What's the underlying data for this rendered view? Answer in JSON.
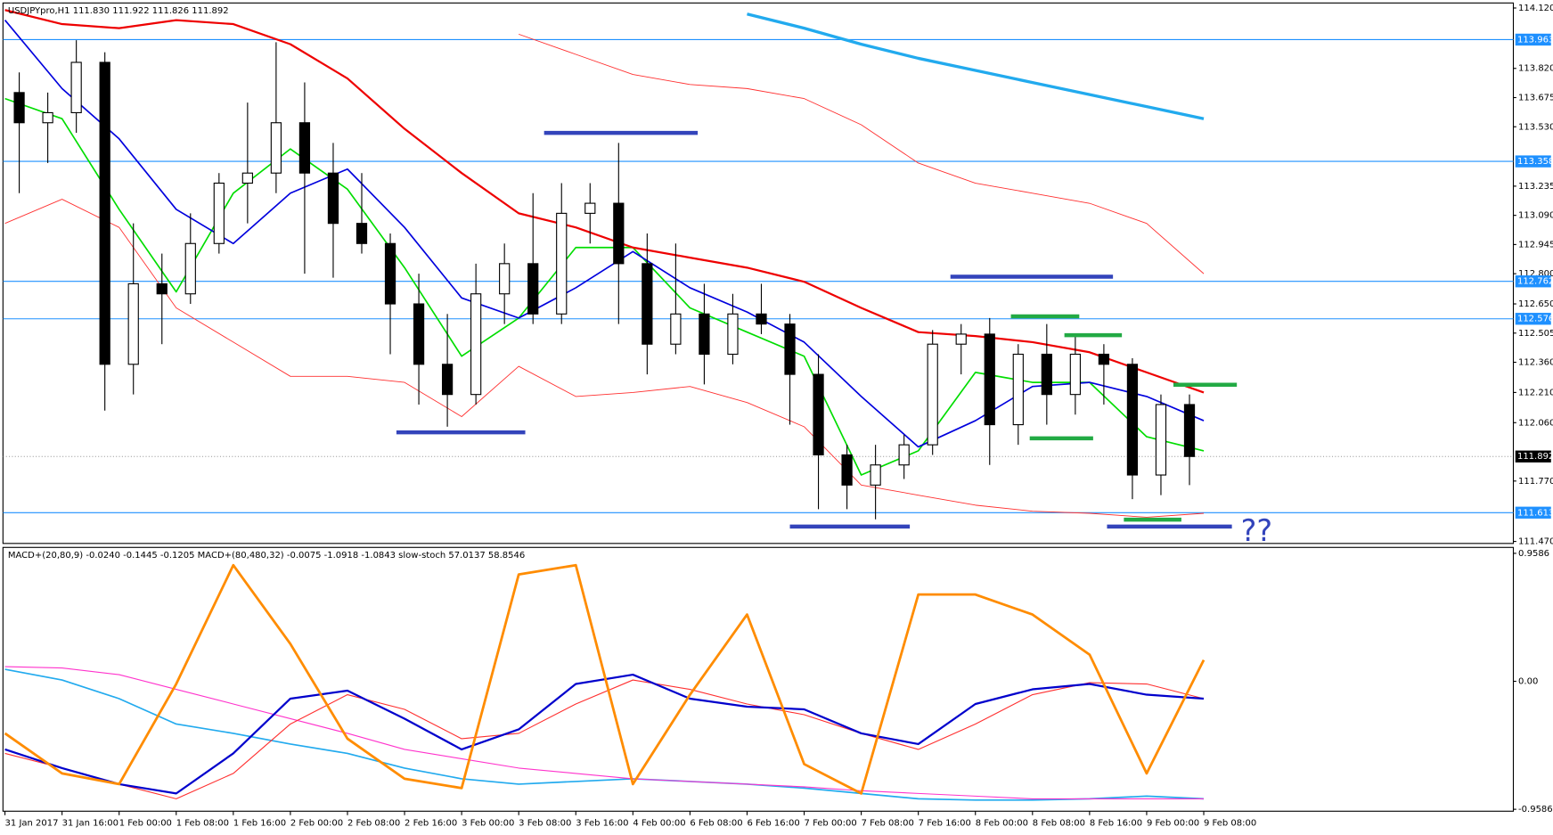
{
  "chart_data": [
    {
      "type": "candlestick",
      "title": "USDJPYpro,H1  111.830 111.922 111.826 111.892",
      "open": [
        113.7,
        113.55,
        113.6,
        113.85,
        112.35,
        112.75,
        112.7,
        112.95,
        113.25,
        113.3,
        113.55,
        113.3,
        113.05,
        112.95,
        112.65,
        112.35,
        112.2,
        112.7,
        112.85,
        112.6,
        113.1,
        113.15,
        112.85,
        112.45,
        112.6,
        112.4,
        112.6,
        112.55,
        112.3,
        111.9,
        111.75,
        111.85,
        111.95,
        112.45,
        112.5,
        112.05,
        112.4,
        112.2,
        112.4,
        112.35,
        111.8,
        112.15
      ],
      "high": [
        113.8,
        113.7,
        113.96,
        113.9,
        113.05,
        112.9,
        113.1,
        113.3,
        113.65,
        113.95,
        113.75,
        113.45,
        113.3,
        113.0,
        112.8,
        112.6,
        112.85,
        112.95,
        113.2,
        113.25,
        113.25,
        113.45,
        113.0,
        112.95,
        112.75,
        112.7,
        112.75,
        112.6,
        112.4,
        111.95,
        111.95,
        112.0,
        112.52,
        112.55,
        112.58,
        112.45,
        112.55,
        112.5,
        112.45,
        112.38,
        112.2,
        112.2
      ],
      "low": [
        113.2,
        113.35,
        113.5,
        112.12,
        112.2,
        112.45,
        112.65,
        112.9,
        113.05,
        113.2,
        112.8,
        112.78,
        112.9,
        112.4,
        112.15,
        112.04,
        112.15,
        112.55,
        112.55,
        112.55,
        112.95,
        112.55,
        112.3,
        112.4,
        112.25,
        112.35,
        112.5,
        112.05,
        111.63,
        111.63,
        111.58,
        111.78,
        111.9,
        112.3,
        111.85,
        111.95,
        112.05,
        112.1,
        112.15,
        111.68,
        111.7,
        111.75
      ],
      "close": [
        113.55,
        113.6,
        113.85,
        112.35,
        112.75,
        112.7,
        112.95,
        113.25,
        113.3,
        113.55,
        113.3,
        113.05,
        112.95,
        112.65,
        112.35,
        112.2,
        112.7,
        112.85,
        112.6,
        113.1,
        113.15,
        112.85,
        112.45,
        112.6,
        112.4,
        112.6,
        112.55,
        112.3,
        111.9,
        111.75,
        111.85,
        111.95,
        112.45,
        112.5,
        112.05,
        112.4,
        112.2,
        112.4,
        112.35,
        111.8,
        112.15,
        111.892
      ],
      "series": [
        {
          "color": "#00dd00",
          "width": 1.5,
          "values": [
            113.67,
            113.57,
            113.12,
            112.71,
            113.2,
            113.42,
            113.22,
            112.83,
            112.39,
            112.58,
            112.93,
            112.93,
            112.63,
            112.51,
            112.39,
            111.8,
            111.92,
            112.31,
            112.26,
            112.26,
            111.99,
            111.92
          ]
        },
        {
          "color": "#0000dd",
          "width": 1.5,
          "values": [
            114.06,
            113.72,
            113.47,
            113.12,
            112.95,
            113.2,
            113.32,
            113.03,
            112.68,
            112.58,
            112.73,
            112.91,
            112.73,
            112.61,
            112.46,
            112.19,
            111.94,
            112.07,
            112.24,
            112.26,
            112.19,
            112.07
          ]
        },
        {
          "color": "#ee0000",
          "width": 2,
          "values": [
            114.11,
            114.04,
            114.02,
            114.06,
            114.04,
            113.94,
            113.77,
            113.52,
            113.3,
            113.1,
            113.03,
            112.93,
            112.88,
            112.83,
            112.76,
            112.63,
            112.51,
            112.49,
            112.46,
            112.41,
            112.31,
            112.21
          ]
        },
        {
          "color": "#ff3030",
          "width": 0.8,
          "values": [
            113.05,
            113.17,
            113.03,
            112.63,
            112.46,
            112.29,
            112.29,
            112.26,
            112.09,
            112.34,
            112.19,
            112.21,
            112.24,
            112.16,
            112.04,
            111.75,
            111.7,
            111.65,
            111.62,
            111.61,
            111.59,
            111.61
          ]
        },
        {
          "color": "#ff3030",
          "width": 0.8,
          "values": [
            null,
            null,
            null,
            null,
            null,
            null,
            null,
            null,
            null,
            113.99,
            113.89,
            113.79,
            113.74,
            113.72,
            113.67,
            113.54,
            113.35,
            113.25,
            113.2,
            113.15,
            113.05,
            112.8
          ]
        },
        {
          "color": "#22aaee",
          "width": 3,
          "values": [
            null,
            null,
            null,
            null,
            null,
            null,
            null,
            null,
            null,
            null,
            null,
            null,
            null,
            114.09,
            114.02,
            113.94,
            113.87,
            113.81,
            113.75,
            113.69,
            113.63,
            113.57
          ]
        }
      ],
      "ylim": [
        111.46,
        114.145
      ],
      "yticks": [
        {
          "value": 114.12,
          "label": "114.120"
        },
        {
          "value": 113.82,
          "label": "113.820"
        },
        113.675,
        {
          "value": 113.53,
          "label": "113.530"
        },
        113.235,
        {
          "value": 113.09,
          "label": "113.090"
        },
        112.945,
        {
          "value": 112.8,
          "label": "112.800"
        },
        {
          "value": 112.65,
          "label": "112.650"
        },
        112.505,
        {
          "value": 112.36,
          "label": "112.360"
        },
        {
          "value": 112.21,
          "label": "112.210"
        },
        {
          "value": 112.06,
          "label": "112.060"
        },
        {
          "value": 111.77,
          "label": "111.770"
        },
        {
          "value": 111.47,
          "label": "111.470"
        }
      ],
      "levels": [
        113.963,
        113.358,
        112.762,
        112.576,
        111.613
      ],
      "level_color": "#1e90ff",
      "current_price": 111.892,
      "annotations": [
        "??"
      ]
    },
    {
      "type": "line",
      "title": "MACD+(20,80,9) -0.0240 -0.1445 -0.1205  MACD+(80,480,32) -0.0075 -1.0918 -1.0843  slow-stoch 57.0137 58.8546",
      "categories": [
        "31 Jan 2017",
        "31 Jan 16:00",
        "1 Feb 00:00",
        "1 Feb 08:00",
        "1 Feb 16:00",
        "2 Feb 00:00",
        "2 Feb 08:00",
        "2 Feb 16:00",
        "3 Feb 00:00",
        "3 Feb 08:00",
        "3 Feb 16:00",
        "4 Feb 00:00",
        "6 Feb 08:00",
        "6 Feb 16:00",
        "7 Feb 00:00",
        "7 Feb 08:00",
        "7 Feb 16:00",
        "8 Feb 00:00",
        "8 Feb 08:00",
        "8 Feb 16:00",
        "9 Feb 00:00",
        "9 Feb 08:00"
      ],
      "series": [
        {
          "color": "#22aaee",
          "width": 1.5,
          "values": [
            0.09,
            0.01,
            -0.13,
            -0.32,
            -0.39,
            -0.47,
            -0.54,
            -0.65,
            -0.73,
            -0.77,
            -0.75,
            -0.73,
            -0.75,
            -0.77,
            -0.8,
            -0.84,
            -0.88,
            -0.89,
            -0.89,
            -0.88,
            -0.86,
            -0.88
          ]
        },
        {
          "color": "#ff33cc",
          "width": 1,
          "values": [
            0.11,
            0.1,
            0.05,
            -0.06,
            -0.17,
            -0.28,
            -0.39,
            -0.51,
            -0.58,
            -0.65,
            -0.69,
            -0.73,
            -0.75,
            -0.77,
            -0.79,
            -0.82,
            -0.84,
            -0.86,
            -0.88,
            -0.88,
            -0.88,
            -0.88
          ]
        },
        {
          "color": "#ff3030",
          "width": 1,
          "values": [
            -0.54,
            -0.65,
            -0.77,
            -0.88,
            -0.69,
            -0.32,
            -0.1,
            -0.21,
            -0.43,
            -0.39,
            -0.17,
            0.01,
            -0.06,
            -0.17,
            -0.25,
            -0.39,
            -0.51,
            -0.32,
            -0.1,
            -0.01,
            -0.02,
            -0.13
          ]
        },
        {
          "color": "#0000cc",
          "width": 2,
          "values": [
            -0.51,
            -0.65,
            -0.77,
            -0.84,
            -0.54,
            -0.13,
            -0.07,
            -0.28,
            -0.51,
            -0.36,
            -0.02,
            0.05,
            -0.13,
            -0.19,
            -0.21,
            -0.39,
            -0.47,
            -0.17,
            -0.06,
            -0.02,
            -0.1,
            -0.13
          ]
        },
        {
          "color": "#ff8c00",
          "width": 2.5,
          "values": [
            -0.39,
            -0.69,
            -0.77,
            -0.02,
            0.87,
            0.28,
            -0.43,
            -0.73,
            -0.8,
            0.8,
            0.87,
            -0.77,
            -0.1,
            0.5,
            -0.62,
            -0.84,
            0.65,
            0.65,
            0.5,
            0.2,
            -0.69,
            0.16
          ]
        }
      ],
      "ylim": [
        -0.973,
        1.003
      ],
      "yticks": [
        0.9586,
        {
          "value": 0,
          "label": "0.00"
        },
        -0.9586
      ]
    }
  ]
}
